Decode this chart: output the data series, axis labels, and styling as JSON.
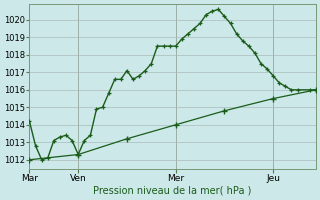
{
  "xlabel": "Pression niveau de la mer( hPa )",
  "background_color": "#cce8e8",
  "plot_bg_color": "#cce8e8",
  "grid_color": "#aabbbb",
  "line_color": "#1a5c1a",
  "ylim": [
    1011.5,
    1020.9
  ],
  "yticks": [
    1012,
    1013,
    1014,
    1015,
    1016,
    1017,
    1018,
    1019,
    1020
  ],
  "day_labels": [
    "Mar",
    "Ven",
    "Mer",
    "Jeu"
  ],
  "day_positions": [
    0,
    1,
    3,
    5
  ],
  "vline_positions": [
    1,
    3,
    5
  ],
  "series1_x": [
    0.0,
    0.125,
    0.25,
    0.375,
    0.5,
    0.625,
    0.75,
    0.875,
    1.0,
    1.125,
    1.25,
    1.375,
    1.5,
    1.625,
    1.75,
    1.875,
    2.0,
    2.125,
    2.25,
    2.375,
    2.5,
    2.625,
    2.75,
    2.875,
    3.0,
    3.125,
    3.25,
    3.375,
    3.5,
    3.625,
    3.75,
    3.875,
    4.0,
    4.125,
    4.25,
    4.375,
    4.5,
    4.625,
    4.75,
    4.875,
    5.0,
    5.125,
    5.25,
    5.375,
    5.5,
    5.75,
    5.875
  ],
  "series1_y": [
    1014.2,
    1012.8,
    1012.0,
    1012.1,
    1013.1,
    1013.3,
    1013.4,
    1013.1,
    1012.3,
    1013.1,
    1013.4,
    1014.9,
    1015.0,
    1015.8,
    1016.6,
    1016.6,
    1017.1,
    1016.6,
    1016.8,
    1017.1,
    1017.5,
    1018.5,
    1018.5,
    1018.5,
    1018.5,
    1018.9,
    1019.2,
    1019.5,
    1019.8,
    1020.3,
    1020.5,
    1020.6,
    1020.2,
    1019.8,
    1019.2,
    1018.8,
    1018.5,
    1018.1,
    1017.5,
    1017.2,
    1016.8,
    1016.4,
    1016.2,
    1016.0,
    1016.0,
    1016.0,
    1016.0
  ],
  "series2_x": [
    0.0,
    1.0,
    2.0,
    3.0,
    4.0,
    5.0,
    5.875
  ],
  "series2_y": [
    1012.0,
    1012.3,
    1013.2,
    1014.0,
    1014.8,
    1015.5,
    1016.0
  ]
}
